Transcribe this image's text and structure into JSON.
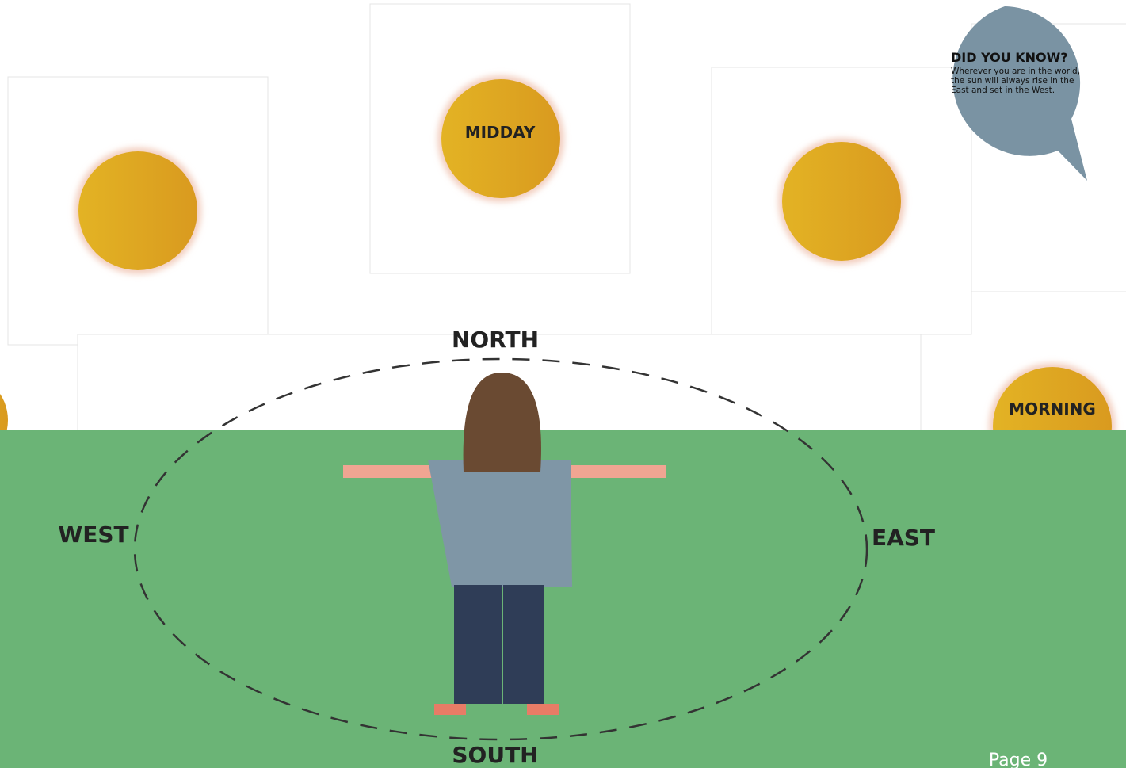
{
  "suns": [
    {
      "label": "MIDDAY"
    },
    {
      "label": "MORNING"
    }
  ],
  "directions": {
    "north": "NORTH",
    "south": "SOUTH",
    "east": "EAST",
    "west": "WEST"
  },
  "callout": {
    "title": "DID YOU KNOW?",
    "text": "Wherever you are in the world, the sun will always rise in the East and set in the West."
  },
  "footer": {
    "page": "Page 9"
  }
}
